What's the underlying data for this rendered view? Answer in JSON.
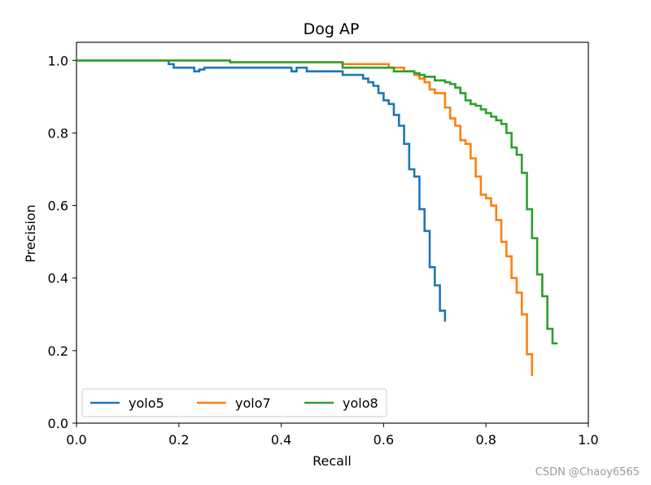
{
  "chart_data": {
    "type": "line",
    "title": "Dog AP",
    "xlabel": "Recall",
    "ylabel": "Precision",
    "xlim": [
      0.0,
      1.0
    ],
    "ylim": [
      0.0,
      1.05
    ],
    "xticks": [
      0.0,
      0.2,
      0.4,
      0.6,
      0.8,
      1.0
    ],
    "yticks": [
      0.0,
      0.2,
      0.4,
      0.6,
      0.8,
      1.0
    ],
    "xtick_labels": [
      "0.0",
      "0.2",
      "0.4",
      "0.6",
      "0.8",
      "1.0"
    ],
    "ytick_labels": [
      "0.0",
      "0.2",
      "0.4",
      "0.6",
      "0.8",
      "1.0"
    ],
    "grid": false,
    "legend_position": "bottom-left",
    "series": [
      {
        "name": "yolo5",
        "color": "#1f77b4",
        "x": [
          0.0,
          0.18,
          0.18,
          0.19,
          0.19,
          0.23,
          0.23,
          0.24,
          0.24,
          0.25,
          0.25,
          0.42,
          0.42,
          0.43,
          0.43,
          0.45,
          0.45,
          0.52,
          0.52,
          0.56,
          0.56,
          0.57,
          0.57,
          0.58,
          0.58,
          0.59,
          0.59,
          0.6,
          0.6,
          0.61,
          0.61,
          0.62,
          0.62,
          0.63,
          0.63,
          0.64,
          0.64,
          0.65,
          0.65,
          0.66,
          0.66,
          0.67,
          0.67,
          0.68,
          0.68,
          0.69,
          0.69,
          0.7,
          0.7,
          0.71,
          0.71,
          0.72,
          0.72
        ],
        "y": [
          1.0,
          1.0,
          0.99,
          0.99,
          0.98,
          0.98,
          0.97,
          0.97,
          0.975,
          0.975,
          0.98,
          0.98,
          0.97,
          0.97,
          0.98,
          0.98,
          0.97,
          0.97,
          0.96,
          0.96,
          0.95,
          0.95,
          0.94,
          0.94,
          0.93,
          0.93,
          0.91,
          0.91,
          0.89,
          0.89,
          0.88,
          0.88,
          0.85,
          0.85,
          0.82,
          0.82,
          0.77,
          0.77,
          0.7,
          0.7,
          0.68,
          0.68,
          0.59,
          0.59,
          0.53,
          0.53,
          0.43,
          0.43,
          0.38,
          0.38,
          0.31,
          0.31,
          0.28
        ]
      },
      {
        "name": "yolo7",
        "color": "#ff7f0e",
        "x": [
          0.0,
          0.21,
          0.21,
          0.3,
          0.3,
          0.52,
          0.52,
          0.61,
          0.61,
          0.64,
          0.64,
          0.66,
          0.66,
          0.67,
          0.67,
          0.68,
          0.68,
          0.69,
          0.69,
          0.7,
          0.7,
          0.72,
          0.72,
          0.73,
          0.73,
          0.74,
          0.74,
          0.75,
          0.75,
          0.76,
          0.76,
          0.77,
          0.77,
          0.78,
          0.78,
          0.79,
          0.79,
          0.8,
          0.8,
          0.81,
          0.81,
          0.82,
          0.82,
          0.83,
          0.83,
          0.84,
          0.84,
          0.85,
          0.85,
          0.86,
          0.86,
          0.87,
          0.87,
          0.88,
          0.88,
          0.89,
          0.89
        ],
        "y": [
          1.0,
          1.0,
          1.0,
          1.0,
          0.995,
          0.995,
          0.99,
          0.99,
          0.98,
          0.98,
          0.97,
          0.97,
          0.96,
          0.96,
          0.95,
          0.95,
          0.94,
          0.94,
          0.92,
          0.92,
          0.91,
          0.91,
          0.87,
          0.87,
          0.84,
          0.84,
          0.82,
          0.82,
          0.78,
          0.78,
          0.77,
          0.77,
          0.73,
          0.73,
          0.68,
          0.68,
          0.63,
          0.63,
          0.62,
          0.62,
          0.6,
          0.6,
          0.56,
          0.56,
          0.5,
          0.5,
          0.46,
          0.46,
          0.4,
          0.4,
          0.36,
          0.36,
          0.3,
          0.3,
          0.19,
          0.19,
          0.13
        ]
      },
      {
        "name": "yolo8",
        "color": "#2ca02c",
        "x": [
          0.0,
          0.3,
          0.3,
          0.52,
          0.52,
          0.62,
          0.62,
          0.66,
          0.66,
          0.67,
          0.67,
          0.68,
          0.68,
          0.7,
          0.7,
          0.72,
          0.72,
          0.73,
          0.73,
          0.74,
          0.74,
          0.75,
          0.75,
          0.76,
          0.76,
          0.77,
          0.77,
          0.78,
          0.78,
          0.79,
          0.79,
          0.8,
          0.8,
          0.81,
          0.81,
          0.82,
          0.82,
          0.83,
          0.83,
          0.84,
          0.84,
          0.85,
          0.85,
          0.86,
          0.86,
          0.87,
          0.87,
          0.88,
          0.88,
          0.89,
          0.89,
          0.9,
          0.9,
          0.91,
          0.91,
          0.92,
          0.92,
          0.93,
          0.93,
          0.94,
          0.94
        ],
        "y": [
          1.0,
          1.0,
          0.995,
          0.995,
          0.98,
          0.98,
          0.97,
          0.97,
          0.965,
          0.965,
          0.96,
          0.96,
          0.955,
          0.955,
          0.945,
          0.945,
          0.94,
          0.94,
          0.935,
          0.935,
          0.925,
          0.925,
          0.91,
          0.91,
          0.89,
          0.89,
          0.88,
          0.88,
          0.875,
          0.875,
          0.865,
          0.865,
          0.855,
          0.855,
          0.845,
          0.845,
          0.835,
          0.835,
          0.825,
          0.825,
          0.8,
          0.8,
          0.76,
          0.76,
          0.74,
          0.74,
          0.69,
          0.69,
          0.59,
          0.59,
          0.51,
          0.51,
          0.41,
          0.41,
          0.35,
          0.35,
          0.26,
          0.26,
          0.22,
          0.22,
          0.22
        ]
      }
    ]
  },
  "watermark": "CSDN @Chaoy6565"
}
